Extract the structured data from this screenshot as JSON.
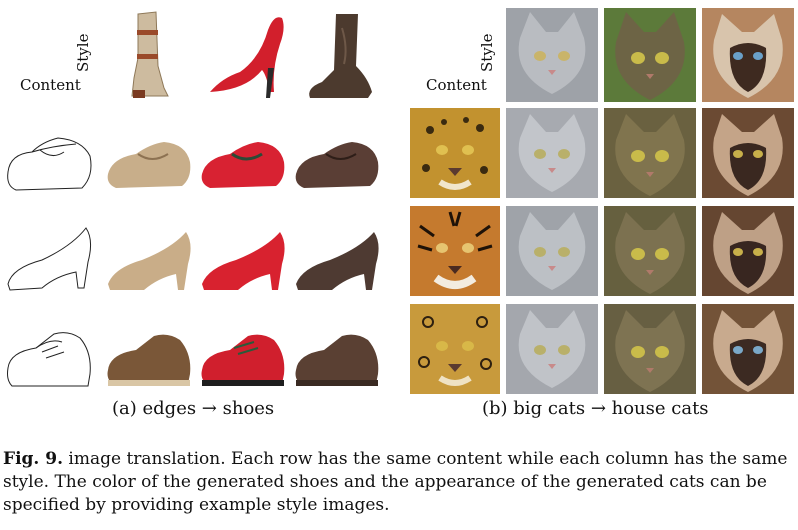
{
  "panel_a": {
    "style_label": "Style",
    "content_label": "Content",
    "caption": "(a) edges → shoes",
    "style_images": [
      {
        "name": "tall-boot",
        "color": "#c8b59a"
      },
      {
        "name": "red-stiletto",
        "color": "#cf1d2b"
      },
      {
        "name": "cowboy-boot",
        "color": "#4a372c"
      }
    ],
    "rows": [
      {
        "content": "mary-jane-sketch",
        "outputs": [
          "#c8ae8a",
          "#d82232",
          "#5a3e35"
        ]
      },
      {
        "content": "pump-sketch",
        "outputs": [
          "#c9ad88",
          "#d8222f",
          "#4e3a32"
        ]
      },
      {
        "content": "oxford-sketch",
        "outputs": [
          "#7a5738",
          "#d01f2d",
          "#5a4033"
        ]
      }
    ]
  },
  "panel_b": {
    "style_label": "Style",
    "content_label": "Content",
    "caption": "(b) big cats → house cats",
    "style_images": [
      {
        "name": "grey-tabby",
        "color": "#9ea2a8"
      },
      {
        "name": "brown-tabby",
        "color": "#6d6445"
      },
      {
        "name": "siamese",
        "color": "#5a3c2a"
      }
    ],
    "rows": [
      {
        "content": "leopard",
        "content_color": "#c2922f",
        "outputs": [
          "#a7aab0",
          "#6a6140",
          "#6b4a33"
        ]
      },
      {
        "content": "tiger",
        "content_color": "#c57a2e",
        "outputs": [
          "#9fa3a9",
          "#66603f",
          "#654631"
        ]
      },
      {
        "content": "jaguar",
        "content_color": "#c89a3c",
        "outputs": [
          "#a4a7ad",
          "#675f42",
          "#735338"
        ]
      }
    ]
  },
  "caption": {
    "label": "Fig. 9.",
    "text": " image translation. Each row has the same content while each column has the same style. The color of the generated shoes and the appearance of the generated cats can be specified by providing example style images."
  }
}
